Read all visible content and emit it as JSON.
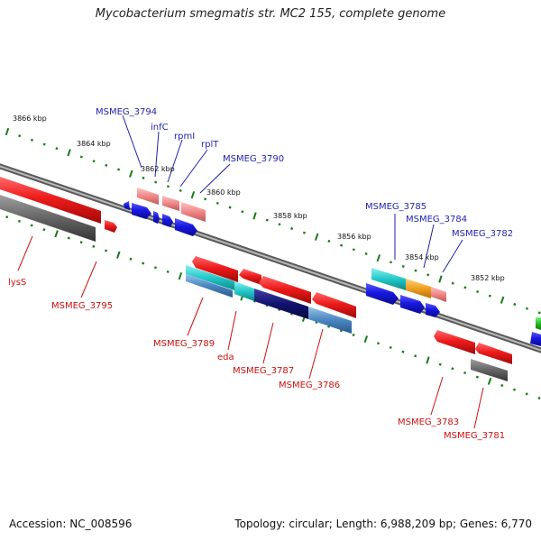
{
  "title": "Mycobacterium smegmatis str. MC2 155, complete genome",
  "footer": {
    "accession": "Accession: NC_008596",
    "summary": "Topology: circular; Length: 6,988,209 bp; Genes: 6,770"
  },
  "scale_labels": [
    "3866 kbp",
    "3864 kbp",
    "3862 kbp",
    "3860 kbp",
    "3858 kbp",
    "3856 kbp",
    "3854 kbp",
    "3852 kbp"
  ],
  "gene_labels": {
    "forward": [
      "MSMEG_3794",
      "infC",
      "rpmI",
      "rplT",
      "MSMEG_3790",
      "MSMEG_3785",
      "MSMEG_3784",
      "MSMEG_3782"
    ],
    "reverse": [
      "lysS",
      "MSMEG_3795",
      "MSMEG_3789",
      "eda",
      "MSMEG_3787",
      "MSMEG_3786",
      "MSMEG_3783",
      "MSMEG_3781"
    ]
  },
  "colors": {
    "forward_label": "#1f1fb0",
    "reverse_label": "#cc1111",
    "tick": "#1a7a1a",
    "backbone": "#8a8a8a",
    "cds_red": "#e81818",
    "cds_blue": "#1a1ae0",
    "cds_gray": "#666666",
    "cds_pink": "#f08a8a",
    "cds_cyan": "#22c8c8",
    "cds_orange": "#f0a020",
    "cds_navy": "#101070",
    "cds_steel": "#4a86c0",
    "cds_green": "#22b822"
  }
}
